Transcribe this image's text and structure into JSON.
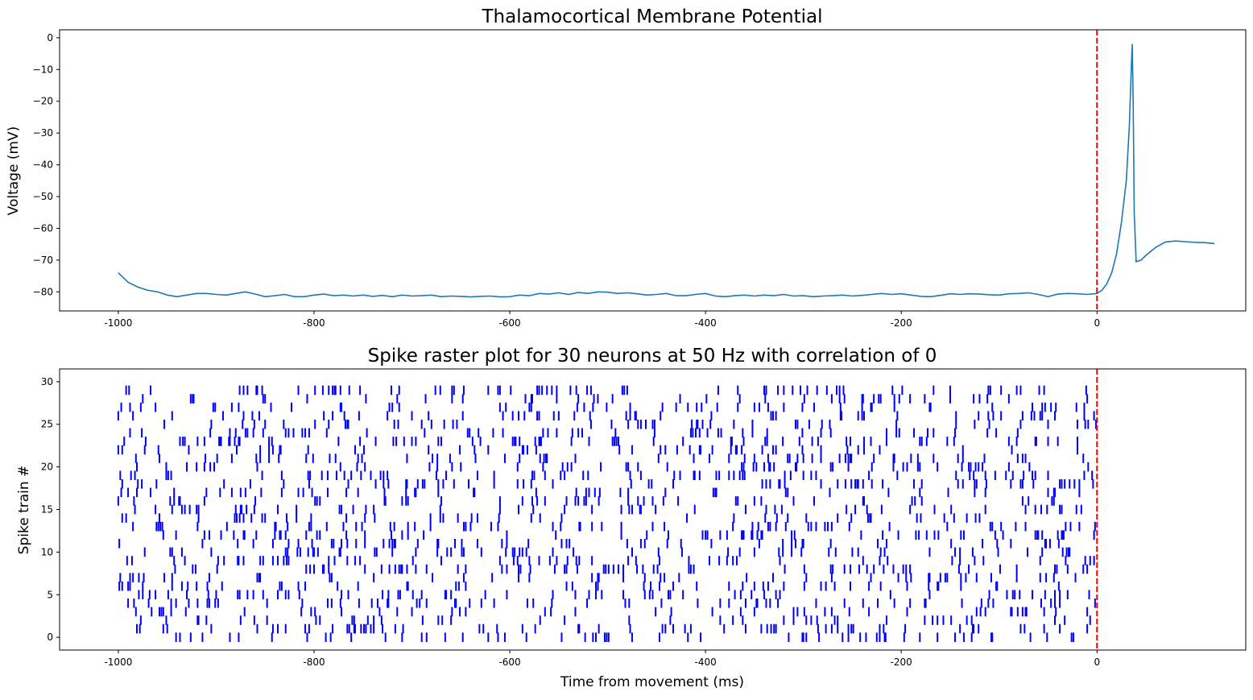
{
  "chart_data": [
    {
      "type": "line",
      "title": "Thalamocortical Membrane Potential",
      "xlabel": "",
      "ylabel": "Voltage (mV)",
      "xlim": [
        -1060,
        152
      ],
      "ylim": [
        -86,
        2.5
      ],
      "xticks": [
        -1000,
        -800,
        -600,
        -400,
        -200,
        0
      ],
      "xtick_labels": [
        "-1000",
        "-800",
        "-600",
        "-400",
        "-200",
        "0"
      ],
      "yticks": [
        0,
        -10,
        -20,
        -30,
        -40,
        -50,
        -60,
        -70,
        -80
      ],
      "ytick_labels": [
        "0",
        "−10",
        "−20",
        "−30",
        "−40",
        "−50",
        "−60",
        "−70",
        "−80"
      ],
      "grid": false,
      "colors": {
        "line": "#1f77b4",
        "marker": "#ff0000"
      },
      "vline": {
        "x": 0,
        "style": "dashed",
        "color": "#ff0000"
      },
      "series": [
        {
          "x": [
            -1000,
            -995,
            -990,
            -980,
            -970,
            -960,
            -950,
            -940,
            -930,
            -920,
            -910,
            -900,
            -890,
            -880,
            -870,
            -860,
            -850,
            -840,
            -830,
            -820,
            -810,
            -800,
            -790,
            -780,
            -770,
            -760,
            -750,
            -740,
            -730,
            -720,
            -710,
            -700,
            -690,
            -680,
            -670,
            -660,
            -650,
            -640,
            -630,
            -620,
            -610,
            -600,
            -590,
            -580,
            -570,
            -560,
            -550,
            -540,
            -530,
            -520,
            -510,
            -500,
            -490,
            -480,
            -470,
            -460,
            -450,
            -440,
            -430,
            -420,
            -410,
            -400,
            -390,
            -380,
            -370,
            -360,
            -350,
            -340,
            -330,
            -320,
            -310,
            -300,
            -290,
            -280,
            -270,
            -260,
            -250,
            -240,
            -230,
            -220,
            -210,
            -200,
            -190,
            -180,
            -170,
            -160,
            -150,
            -140,
            -130,
            -120,
            -110,
            -100,
            -90,
            -80,
            -70,
            -60,
            -50,
            -40,
            -30,
            -20,
            -10,
            0,
            5,
            10,
            15,
            20,
            25,
            30,
            33,
            35,
            36,
            37,
            38,
            40,
            45,
            50,
            60,
            70,
            80,
            90,
            100,
            110,
            120
          ],
          "y": [
            -74,
            -75.5,
            -77,
            -78.5,
            -79.5,
            -80,
            -81,
            -81.5,
            -81,
            -80.5,
            -80.5,
            -80.8,
            -81,
            -80.5,
            -80,
            -80.7,
            -81.5,
            -81.2,
            -80.8,
            -81.5,
            -81.5,
            -81,
            -80.7,
            -81.2,
            -81,
            -81.3,
            -81,
            -81.4,
            -81.1,
            -81.5,
            -81,
            -81.3,
            -81.2,
            -81,
            -81.5,
            -81.3,
            -81.4,
            -81.6,
            -81.4,
            -81.3,
            -81.6,
            -81.5,
            -81,
            -81.2,
            -80.5,
            -80.7,
            -80.3,
            -80.8,
            -80.2,
            -80.5,
            -80,
            -80.1,
            -80.5,
            -80.3,
            -80.6,
            -81,
            -80.8,
            -80.5,
            -81.2,
            -81.2,
            -80.8,
            -80.5,
            -81.3,
            -81.5,
            -81.2,
            -81,
            -81.3,
            -81,
            -81.2,
            -80.8,
            -81.3,
            -81.2,
            -81.5,
            -81.3,
            -81.2,
            -81,
            -81.3,
            -81.1,
            -80.8,
            -80.5,
            -80.8,
            -80.6,
            -81,
            -81.4,
            -81.5,
            -81.1,
            -80.6,
            -80.8,
            -80.6,
            -80.7,
            -80.9,
            -81,
            -80.6,
            -80.5,
            -80.3,
            -80.8,
            -81.5,
            -80.7,
            -80.5,
            -80.6,
            -80.8,
            -80.5,
            -79.5,
            -77.5,
            -74,
            -68,
            -58,
            -45,
            -28,
            -10,
            -2,
            -20,
            -55,
            -70.5,
            -70,
            -68.5,
            -66,
            -64.3,
            -64,
            -64.2,
            -64.4,
            -64.5,
            -64.8
          ]
        }
      ]
    },
    {
      "type": "scatter",
      "title": "Spike raster plot for 30 neurons at 50 Hz with correlation of 0",
      "xlabel": "Time from movement (ms)",
      "ylabel": "Spike train #",
      "xlim": [
        -1060,
        152
      ],
      "ylim": [
        -1.5,
        31.5
      ],
      "xticks": [
        -1000,
        -800,
        -600,
        -400,
        -200,
        0
      ],
      "xtick_labels": [
        "-1000",
        "-800",
        "-600",
        "-400",
        "-200",
        "0"
      ],
      "yticks": [
        0,
        5,
        10,
        15,
        20,
        25,
        30
      ],
      "ytick_labels": [
        "0",
        "5",
        "10",
        "15",
        "20",
        "25",
        "30"
      ],
      "grid": false,
      "marker": "vertical tick",
      "colors": {
        "spike": "#0000ff",
        "marker": "#ff0000"
      },
      "vline": {
        "x": 0,
        "style": "dashed",
        "color": "#ff0000"
      },
      "neurons": 30,
      "rate_hz": 50,
      "window_ms": [
        -1000,
        0
      ],
      "correlation": 0
    }
  ]
}
